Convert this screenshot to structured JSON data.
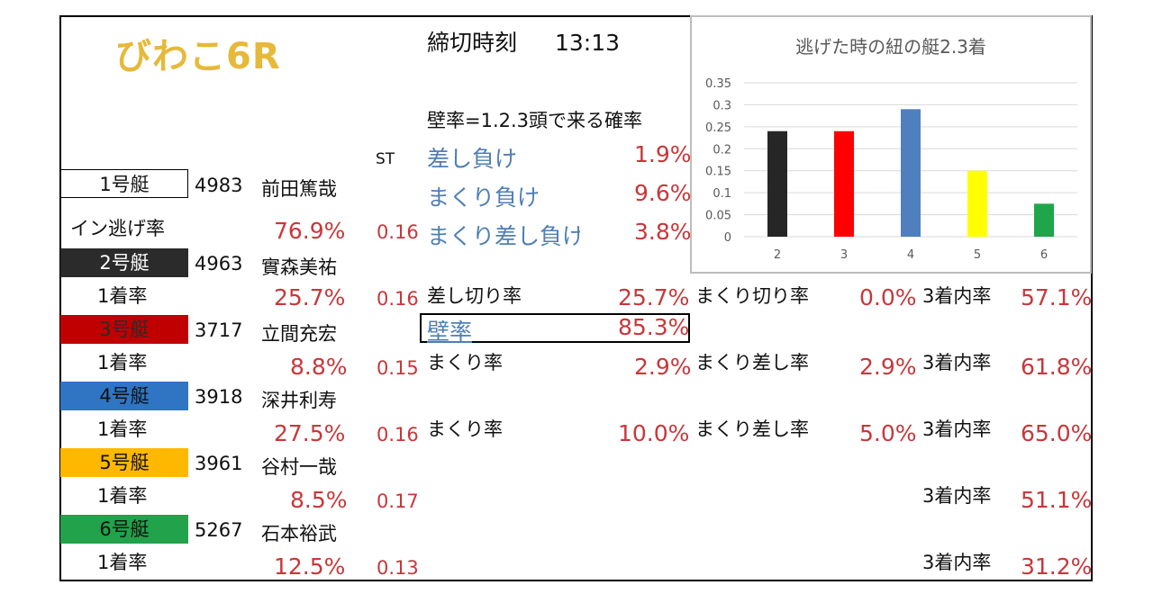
{
  "header": {
    "title": "びわこ6R",
    "deadline_label": "締切時刻",
    "deadline_time": "13:13",
    "wall_note": "壁率=1.2.3頭で来る確率",
    "st_label": "ST"
  },
  "boats": [
    {
      "label": "1号艇",
      "id": "4983",
      "name": "前田篤哉",
      "rate_label": "イン逃げ率",
      "rate": "76.9%",
      "st": "0.16"
    },
    {
      "label": "2号艇",
      "id": "4963",
      "name": "實森美祐",
      "rate_label": "1着率",
      "rate": "25.7%",
      "st": "0.16"
    },
    {
      "label": "3号艇",
      "id": "3717",
      "name": "立間充宏",
      "rate_label": "1着率",
      "rate": "8.8%",
      "st": "0.15"
    },
    {
      "label": "4号艇",
      "id": "3918",
      "name": "深井利寿",
      "rate_label": "1着率",
      "rate": "27.5%",
      "st": "0.16"
    },
    {
      "label": "5号艇",
      "id": "3961",
      "name": "谷村一哉",
      "rate_label": "1着率",
      "rate": "8.5%",
      "st": "0.17"
    },
    {
      "label": "6号艇",
      "id": "5267",
      "name": "石本裕武",
      "rate_label": "1着率",
      "rate": "12.5%",
      "st": "0.13"
    }
  ],
  "boat1_stats": [
    {
      "label": "差し負け",
      "value": "1.9%"
    },
    {
      "label": "まくり負け",
      "value": "9.6%"
    },
    {
      "label": "まくり差し負け",
      "value": "3.8%"
    }
  ],
  "boat2_stats": {
    "sashikiri_label": "差し切り率",
    "sashikiri": "25.7%",
    "makurikiri_label": "まくり切り率",
    "makurikiri": "0.0%",
    "top3_label": "3着内率",
    "top3": "57.1%",
    "wall_label": "壁率",
    "wall": "85.3%"
  },
  "boat3_stats": {
    "makuri_label": "まくり率",
    "makuri": "2.9%",
    "makurisashi_label": "まくり差し率",
    "makurisashi": "2.9%",
    "top3_label": "3着内率",
    "top3": "61.8%"
  },
  "boat4_stats": {
    "makuri_label": "まくり率",
    "makuri": "10.0%",
    "makurisashi_label": "まくり差し率",
    "makurisashi": "5.0%",
    "top3_label": "3着内率",
    "top3": "65.0%"
  },
  "boat5_stats": {
    "top3_label": "3着内率",
    "top3": "51.1%"
  },
  "boat6_stats": {
    "top3_label": "3着内率",
    "top3": "31.2%"
  },
  "chart_data": {
    "type": "bar",
    "title": "逃げた時の紐の艇2.3着",
    "categories": [
      "2",
      "3",
      "4",
      "5",
      "6"
    ],
    "values": [
      0.24,
      0.24,
      0.29,
      0.15,
      0.075
    ],
    "colors": [
      "#262626",
      "#ff0000",
      "#4f7fbf",
      "#ffff00",
      "#1fa64b"
    ],
    "ylim": [
      0,
      0.35
    ],
    "yticks": [
      "0",
      "0.05",
      "0.1",
      "0.15",
      "0.2",
      "0.25",
      "0.3",
      "0.35"
    ],
    "grid": true,
    "legend": "none"
  }
}
